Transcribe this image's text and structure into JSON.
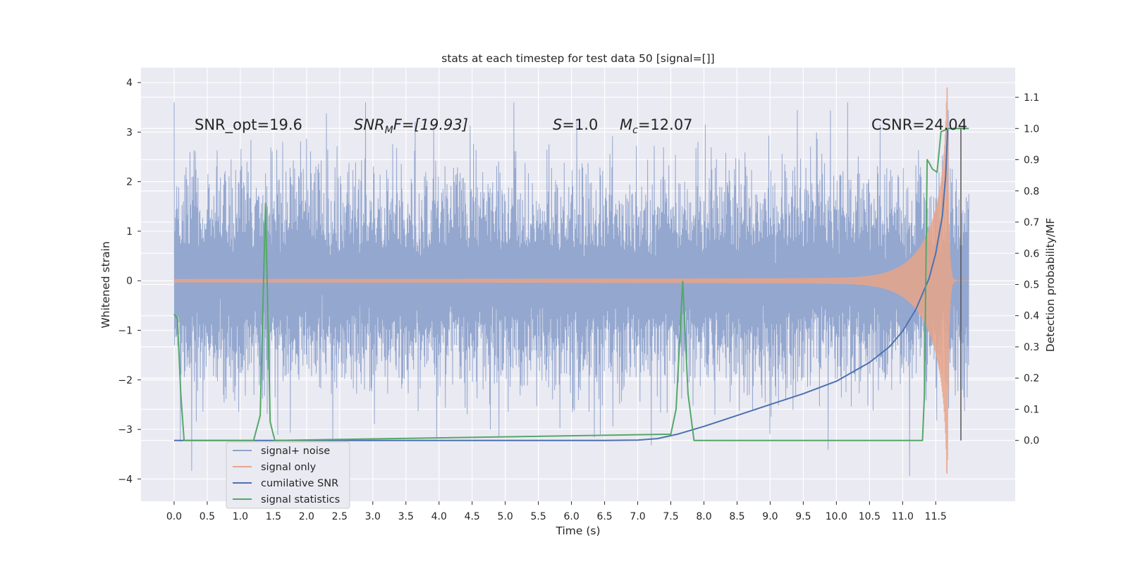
{
  "chart_data": {
    "type": "line",
    "title": "stats at each timestep for test data 50 [signal=[]]",
    "xlabel": "Time (s)",
    "ylabel_left": "Whitened strain",
    "ylabel_right": "Detection probability/MF",
    "xlim": [
      -0.5,
      12.7
    ],
    "ylim_left": [
      -4.45,
      4.3
    ],
    "ylim_right": [
      -0.195,
      1.195
    ],
    "x_ticks": [
      "0.0",
      "0.5",
      "1.0",
      "1.5",
      "2.0",
      "2.5",
      "3.0",
      "3.5",
      "4.0",
      "4.5",
      "5.0",
      "5.5",
      "6.0",
      "6.5",
      "7.0",
      "7.5",
      "8.0",
      "8.5",
      "9.0",
      "9.5",
      "10.0",
      "10.5",
      "11.0",
      "11.5"
    ],
    "y_ticks_left": [
      "4",
      "3",
      "2",
      "1",
      "0",
      "−1",
      "−2",
      "−3",
      "−4"
    ],
    "y_ticks_right": [
      "1.1",
      "1.0",
      "0.9",
      "0.8",
      "0.7",
      "0.6",
      "0.5",
      "0.4",
      "0.3",
      "0.2",
      "0.1",
      "0.0"
    ],
    "grid": true,
    "legend_position": "lower-left",
    "annotations": {
      "snr_opt": "SNR_opt=19.6",
      "snr_mf_main": "SNR",
      "snr_mf_sub": "M",
      "snr_mf_tail": "F=[19.93]",
      "s_main": "S",
      "s_tail": "=1.0",
      "mc_main": "M",
      "mc_sub": "c",
      "mc_tail": "=12.07",
      "csnr": "CSNR=24.04"
    },
    "series": [
      {
        "name": "signal+ noise",
        "axis": "left",
        "color": "#8fa3cc",
        "description_level": "whitened noisy strain, amplitude spanning roughly -4.1 to 3.6",
        "x_range": [
          0.0,
          12.0
        ]
      },
      {
        "name": "signal only",
        "axis": "left",
        "color": "#e7a58a",
        "chirp": {
          "start": 0.0,
          "merger": 11.68,
          "peak_amplitude": 3.9,
          "end": 12.0
        }
      },
      {
        "name": "cumilative SNR",
        "axis": "right",
        "color": "#4c72b0",
        "x": [
          0.0,
          6.5,
          7.0,
          7.3,
          7.6,
          8.0,
          8.5,
          9.0,
          9.5,
          10.0,
          10.5,
          10.8,
          11.0,
          11.2,
          11.4,
          11.5,
          11.6,
          11.65,
          11.68
        ],
        "y": [
          0.0,
          0.0,
          0.001,
          0.006,
          0.02,
          0.045,
          0.08,
          0.115,
          0.15,
          0.19,
          0.25,
          0.3,
          0.35,
          0.42,
          0.52,
          0.6,
          0.72,
          0.85,
          1.0
        ]
      },
      {
        "name": "signal statistics",
        "axis": "right",
        "color": "#55a868",
        "x": [
          0.0,
          0.05,
          0.1,
          0.15,
          0.2,
          1.2,
          1.3,
          1.38,
          1.45,
          1.52,
          7.5,
          7.58,
          7.68,
          7.76,
          7.85,
          11.3,
          11.33,
          11.37,
          11.4,
          11.45,
          11.52,
          11.58,
          11.7,
          11.8,
          12.0
        ],
        "y": [
          0.405,
          0.39,
          0.15,
          0.0,
          0.0,
          0.0,
          0.08,
          0.76,
          0.06,
          0.0,
          0.02,
          0.1,
          0.51,
          0.15,
          0.0,
          0.0,
          0.15,
          0.9,
          0.89,
          0.87,
          0.86,
          0.99,
          1.0,
          1.0,
          1.0
        ]
      }
    ],
    "vertical_marker": {
      "x": 11.88,
      "color": "#555555"
    }
  }
}
